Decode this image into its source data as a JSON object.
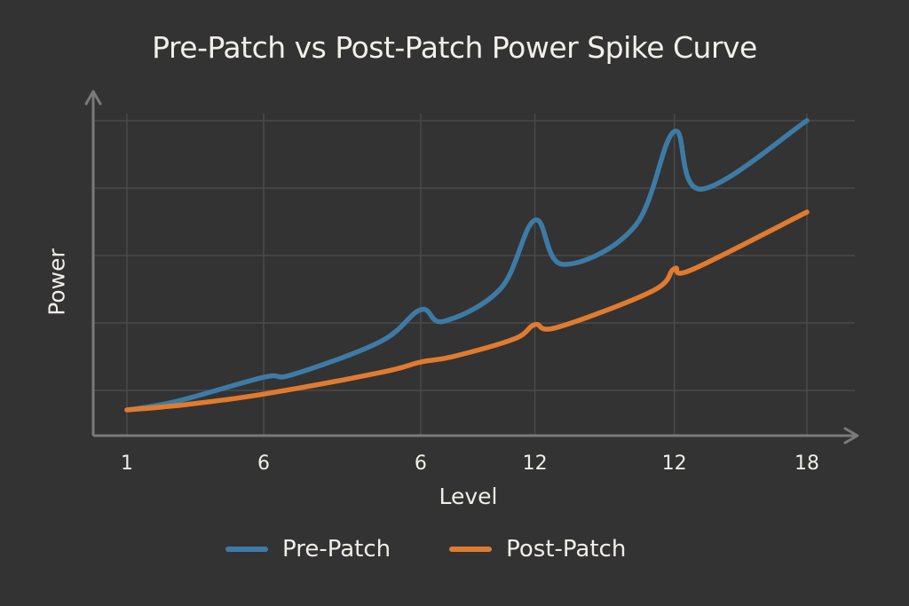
{
  "chart_data": {
    "type": "line",
    "title": "Pre-Patch vs Post-Patch Power Spike Curve",
    "xlabel": "Level",
    "ylabel": "Power",
    "x_tick_labels": [
      "1",
      "6",
      "6",
      "12",
      "12",
      "18"
    ],
    "x_tick_positions": [
      0.0,
      0.201,
      0.432,
      0.6,
      0.805,
      1.0
    ],
    "x_range": [
      0,
      1
    ],
    "ylim": [
      6.6,
      110
    ],
    "y_gridlines": [
      20,
      40,
      60,
      80,
      100
    ],
    "y_tick_labels_shown": false,
    "grid": true,
    "legend_position": "bottom-center",
    "series": [
      {
        "name": "Pre-Patch",
        "color": "#3d7ba6",
        "points": [
          [
            0.0,
            14.2
          ],
          [
            0.074,
            16.8
          ],
          [
            0.201,
            23.9
          ],
          [
            0.244,
            24.7
          ],
          [
            0.373,
            34.5
          ],
          [
            0.432,
            43.9
          ],
          [
            0.466,
            40.5
          ],
          [
            0.55,
            50.3
          ],
          [
            0.6,
            70.5
          ],
          [
            0.641,
            57.4
          ],
          [
            0.747,
            68.7
          ],
          [
            0.805,
            96.8
          ],
          [
            0.845,
            79.7
          ],
          [
            1.0,
            100.0
          ]
        ]
      },
      {
        "name": "Post-Patch",
        "color": "#e07b30",
        "points": [
          [
            0.0,
            14.2
          ],
          [
            0.087,
            15.8
          ],
          [
            0.201,
            18.9
          ],
          [
            0.373,
            25.3
          ],
          [
            0.432,
            28.4
          ],
          [
            0.479,
            30.0
          ],
          [
            0.57,
            35.3
          ],
          [
            0.6,
            39.5
          ],
          [
            0.633,
            38.7
          ],
          [
            0.773,
            49.5
          ],
          [
            0.805,
            56.1
          ],
          [
            0.831,
            55.8
          ],
          [
            1.0,
            72.9
          ]
        ]
      }
    ]
  },
  "colors": {
    "background": "#333333",
    "grid": "#4a4a4a",
    "axis": "#7a7a7a",
    "text": "#f0eee8"
  }
}
